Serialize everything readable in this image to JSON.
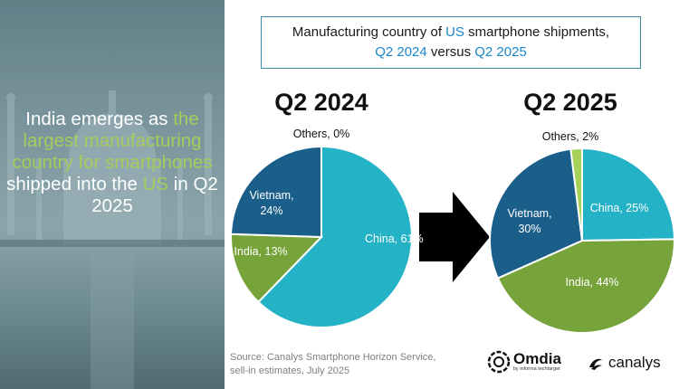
{
  "headline": {
    "part1": "India emerges as ",
    "part2": "the largest manufacturing country for smartphones",
    "part3": " shipped into the ",
    "part4": "US",
    "part5": " in Q2 2025"
  },
  "title": {
    "line1_a": "Manufacturing country of ",
    "line1_b": "US",
    "line1_c": " smartphone shipments,",
    "line2_a": "Q2 2024",
    "line2_b": " versus ",
    "line2_c": "Q2 2025"
  },
  "colors": {
    "china": "#23b2c6",
    "india": "#77a33b",
    "vietnam": "#1a5e8a",
    "others": "#a6d25a",
    "accent": "#1a86c8",
    "headline_green": "#a6cc5c"
  },
  "chart_data": [
    {
      "type": "pie",
      "title": "Q2 2024",
      "slices": [
        {
          "name": "China",
          "value": 61,
          "label": "China, 61%",
          "color": "#23b2c6"
        },
        {
          "name": "India",
          "value": 13,
          "label": "India, 13%",
          "color": "#77a33b"
        },
        {
          "name": "Vietnam",
          "value": 24,
          "label": "Vietnam, 24%",
          "color": "#1a5e8a"
        },
        {
          "name": "Others",
          "value": 0,
          "label": "Others, 0%",
          "color": "#a6d25a"
        }
      ]
    },
    {
      "type": "pie",
      "title": "Q2 2025",
      "slices": [
        {
          "name": "China",
          "value": 25,
          "label": "China, 25%",
          "color": "#23b2c6"
        },
        {
          "name": "India",
          "value": 44,
          "label": "India, 44%",
          "color": "#77a33b"
        },
        {
          "name": "Vietnam",
          "value": 30,
          "label": "Vietnam, 30%",
          "color": "#1a5e8a"
        },
        {
          "name": "Others",
          "value": 2,
          "label": "Others, 2%",
          "color": "#a6d25a"
        }
      ]
    }
  ],
  "source": {
    "line1": "Source: Canalys Smartphone Horizon Service,",
    "line2": "sell-in estimates, July 2025"
  },
  "logos": {
    "omdia": "Omdia",
    "omdia_sub": "by informa techtarget",
    "canalys": "canalys"
  }
}
